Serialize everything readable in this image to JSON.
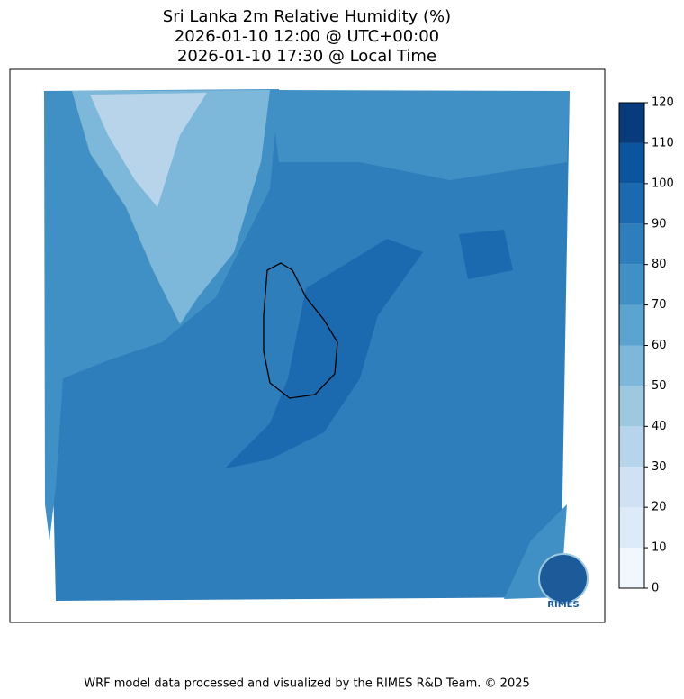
{
  "title": [
    "Sri Lanka 2m Relative Humidity (%)",
    "2026-01-10 12:00 @ UTC+00:00",
    "2026-01-10 17:30 @ Local Time"
  ],
  "colorbar": {
    "ticks": [
      0,
      10,
      20,
      30,
      40,
      50,
      60,
      70,
      80,
      90,
      100,
      110,
      120
    ],
    "colors": [
      "#f0f7ff",
      "#dcebf7",
      "#cfe1f2",
      "#b7d4ea",
      "#9cc9e0",
      "#7db8da",
      "#5ca4d0",
      "#4190c5",
      "#2e7ebc",
      "#1b69af",
      "#0b559f",
      "#083b7b"
    ]
  },
  "logo": "RIMES",
  "footer": "WRF model data processed and visualized by the RIMES R&D Team. © 2025"
}
